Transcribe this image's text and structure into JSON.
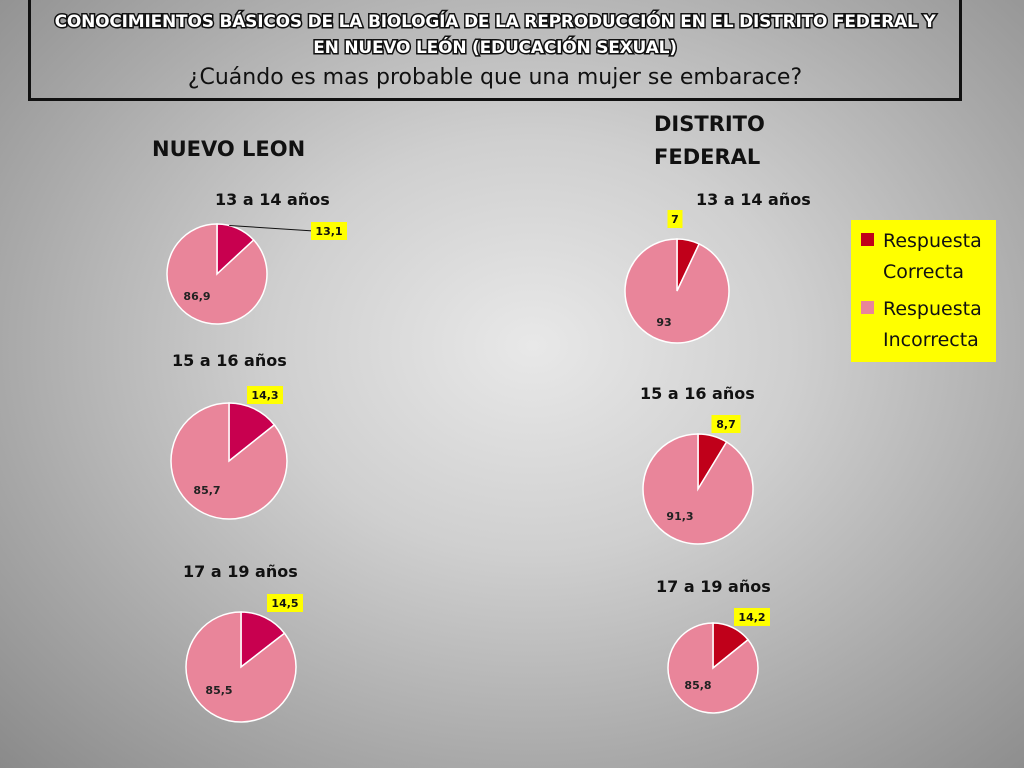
{
  "header": {
    "headline": "CONOCIMIENTOS BÁSICOS DE LA BIOLOGÍA DE LA REPRODUCCIÓN EN EL DISTRITO FEDERAL Y EN NUEVO LEÓN (EDUCACIÓN SEXUAL)",
    "question": "¿Cuándo es mas probable que una mujer se embarace?"
  },
  "regions": {
    "nuevo_leon": "NUEVO LEON",
    "distrito_federal": "DISTRITO FEDERAL"
  },
  "legend": {
    "correct": "Respuesta Correcta",
    "incorrect": "Respuesta Incorrecta"
  },
  "colors": {
    "correct_nl": "#c8004f",
    "correct_df": "#c0001a",
    "incorrect": "#e9859a",
    "label_bg": "#ffff00"
  },
  "chart_data": [
    {
      "type": "pie",
      "region": "NUEVO LEON",
      "title": "13 a 14 años",
      "labels": [
        "Respuesta Correcta",
        "Respuesta Incorrecta"
      ],
      "values": [
        13.1,
        86.9
      ],
      "value_labels": [
        "13,1",
        "86,9"
      ]
    },
    {
      "type": "pie",
      "region": "NUEVO LEON",
      "title": "15 a 16 años",
      "labels": [
        "Respuesta Correcta",
        "Respuesta Incorrecta"
      ],
      "values": [
        14.3,
        85.7
      ],
      "value_labels": [
        "14,3",
        "85,7"
      ]
    },
    {
      "type": "pie",
      "region": "NUEVO LEON",
      "title": "17 a 19 años",
      "labels": [
        "Respuesta Correcta",
        "Respuesta Incorrecta"
      ],
      "values": [
        14.5,
        85.5
      ],
      "value_labels": [
        "14,5",
        "85,5"
      ]
    },
    {
      "type": "pie",
      "region": "DISTRITO FEDERAL",
      "title": "13 a 14 años",
      "labels": [
        "Respuesta Correcta",
        "Respuesta Incorrecta"
      ],
      "values": [
        7,
        93
      ],
      "value_labels": [
        "7",
        "93"
      ]
    },
    {
      "type": "pie",
      "region": "DISTRITO FEDERAL",
      "title": "15 a 16 años",
      "labels": [
        "Respuesta Correcta",
        "Respuesta Incorrecta"
      ],
      "values": [
        8.7,
        91.3
      ],
      "value_labels": [
        "8,7",
        "91,3"
      ]
    },
    {
      "type": "pie",
      "region": "DISTRITO FEDERAL",
      "title": "17 a 19 años",
      "labels": [
        "Respuesta Correcta",
        "Respuesta Incorrecta"
      ],
      "values": [
        14.2,
        85.8
      ],
      "value_labels": [
        "14,2",
        "85,8"
      ]
    }
  ]
}
